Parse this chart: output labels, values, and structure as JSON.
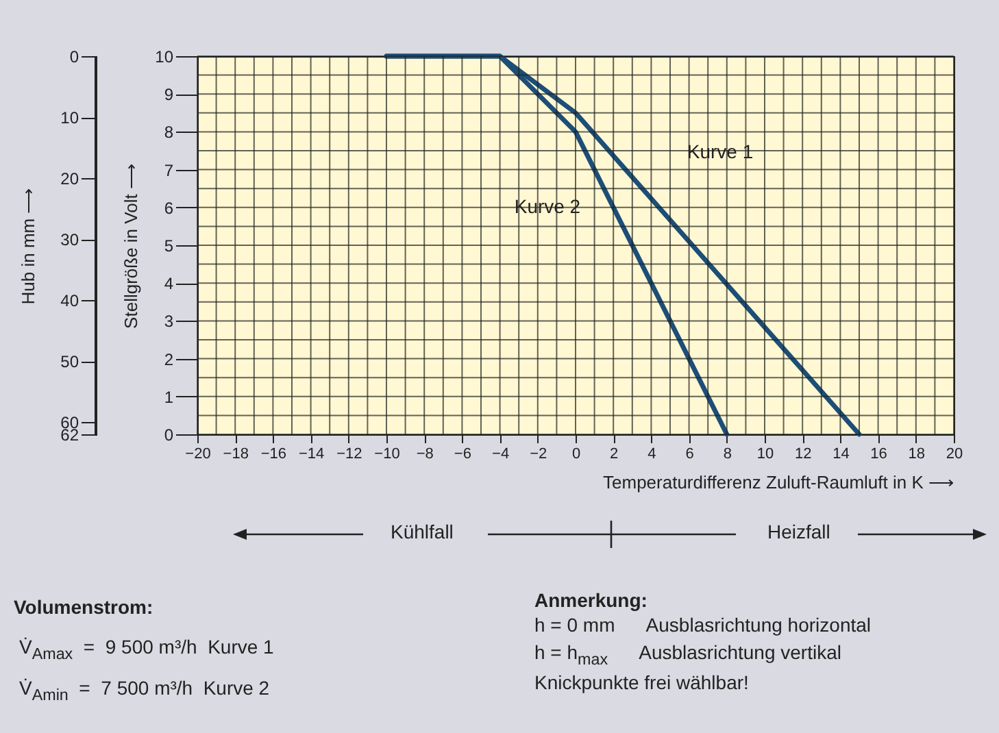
{
  "chart_data": {
    "type": "line",
    "xlabel": "Temperaturdifferenz Zuluft-Raumluft in K ⟶",
    "ylabel": "Stellgröße in Volt ⟶",
    "y2label": "Hub in mm ⟶",
    "series": [
      {
        "name": "Kurve 1",
        "color": "#1d4e78",
        "x": [
          -10,
          -4,
          0,
          15
        ],
        "values": [
          10,
          10,
          8.5,
          0
        ]
      },
      {
        "name": "Kurve 2",
        "color": "#1d4e78",
        "x": [
          -10,
          -4,
          0,
          8
        ],
        "values": [
          10,
          10,
          8,
          0
        ]
      }
    ],
    "xlim": [
      -20,
      20
    ],
    "xticks": [
      -20,
      -18,
      -16,
      -14,
      -12,
      -10,
      -8,
      -6,
      -4,
      -2,
      0,
      2,
      4,
      6,
      8,
      10,
      12,
      14,
      16,
      18,
      20
    ],
    "ylim": [
      0,
      10
    ],
    "yticks": [
      0,
      1,
      2,
      3,
      4,
      5,
      6,
      7,
      8,
      9,
      10
    ],
    "y2lim": [
      62,
      0
    ],
    "y2ticks": [
      0,
      10,
      20,
      30,
      40,
      50,
      60,
      62
    ],
    "grid": true,
    "legend": false,
    "marker": "none",
    "line_style": "solid",
    "annotations": [
      "Kühlfall",
      "Heizfall",
      "Volumenstrom:",
      "V̇$_{Amax}$  =  9 500 m³/h  Kurve 1",
      "V̇$_{Amin}$  =  7 500 m³/h  Kurve 2",
      "Anmerkung:",
      "h = 0 mm      Ausblasrichtung horizontal",
      "h = h$_{max}$      Ausblasrichtung vertikal",
      "Knickpunkte frei wählbar!"
    ]
  }
}
